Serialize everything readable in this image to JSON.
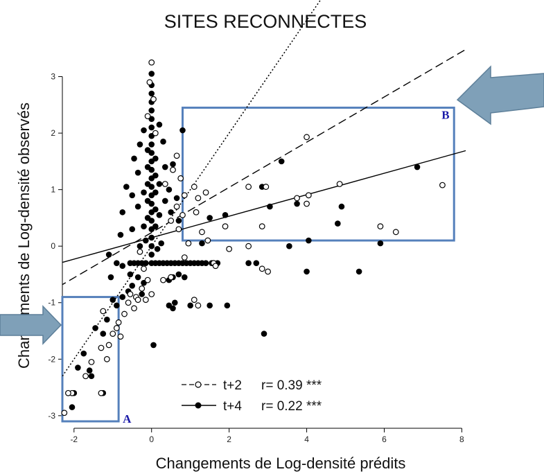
{
  "chart_data": {
    "type": "scatter",
    "title": "SITES RECONNECTES",
    "xlabel": "Changements de Log-densité prédits",
    "ylabel": "Changements de Log-densité observés",
    "xlim": [
      -2.3,
      8.1
    ],
    "ylim": [
      -3.1,
      3.35
    ],
    "x_ticks": [
      -2,
      0,
      2,
      4,
      6,
      8
    ],
    "y_ticks": [
      -3,
      -2,
      -1,
      0,
      1,
      2,
      3
    ],
    "grid": false,
    "legend_position": "bottom-center",
    "series": [
      {
        "label": "t+2",
        "stat": "r= 0.39 ***",
        "marker": "open-circle",
        "fit_line": {
          "style": "dashed",
          "slope": 0.4,
          "intercept": 0.24
        },
        "points": [
          [
            0.0,
            3.25
          ],
          [
            -0.05,
            2.9
          ],
          [
            0.05,
            2.6
          ],
          [
            -0.1,
            2.3
          ],
          [
            0.1,
            2.0
          ],
          [
            0.65,
            1.6
          ],
          [
            0.55,
            1.35
          ],
          [
            0.35,
            1.1
          ],
          [
            0.75,
            1.2
          ],
          [
            0.85,
            0.9
          ],
          [
            0.65,
            0.7
          ],
          [
            0.8,
            0.55
          ],
          [
            0.5,
            0.45
          ],
          [
            1.1,
            1.05
          ],
          [
            1.2,
            0.85
          ],
          [
            1.4,
            0.95
          ],
          [
            1.15,
            0.6
          ],
          [
            0.95,
            0.05
          ],
          [
            0.7,
            0.3
          ],
          [
            1.3,
            0.25
          ],
          [
            1.45,
            0.1
          ],
          [
            1.9,
            0.35
          ],
          [
            2.0,
            -0.05
          ],
          [
            2.5,
            1.05
          ],
          [
            2.95,
            1.05
          ],
          [
            2.85,
            0.35
          ],
          [
            2.5,
            0.0
          ],
          [
            2.85,
            -0.4
          ],
          [
            3.0,
            -0.45
          ],
          [
            3.75,
            0.85
          ],
          [
            4.0,
            1.93
          ],
          [
            4.05,
            0.9
          ],
          [
            4.0,
            0.75
          ],
          [
            4.85,
            1.1
          ],
          [
            5.9,
            0.35
          ],
          [
            6.3,
            0.25
          ],
          [
            7.5,
            1.08
          ],
          [
            1.6,
            -0.3
          ],
          [
            1.65,
            -0.35
          ],
          [
            0.85,
            -0.2
          ],
          [
            -0.3,
            -0.1
          ],
          [
            -0.2,
            -0.4
          ],
          [
            -0.1,
            -0.6
          ],
          [
            -0.25,
            -0.75
          ],
          [
            -0.4,
            -0.9
          ],
          [
            -0.55,
            -0.85
          ],
          [
            -0.6,
            -1.0
          ],
          [
            -0.35,
            -0.95
          ],
          [
            -0.15,
            -0.95
          ],
          [
            0.0,
            -0.85
          ],
          [
            -0.45,
            -1.1
          ],
          [
            -0.7,
            -1.2
          ],
          [
            -0.85,
            -1.35
          ],
          [
            -0.9,
            -1.45
          ],
          [
            -1.0,
            -1.55
          ],
          [
            -0.8,
            -1.6
          ],
          [
            -1.1,
            -1.75
          ],
          [
            -1.3,
            -1.8
          ],
          [
            -1.55,
            -2.05
          ],
          [
            -1.7,
            -2.3
          ],
          [
            -2.05,
            -2.6
          ],
          [
            -2.15,
            -2.6
          ],
          [
            -2.25,
            -2.95
          ],
          [
            -1.15,
            -2.0
          ],
          [
            -1.3,
            -2.6
          ],
          [
            -1.25,
            -1.15
          ],
          [
            1.1,
            -0.95
          ],
          [
            0.5,
            -0.55
          ],
          [
            0.3,
            -0.6
          ],
          [
            1.2,
            -1.05
          ]
        ]
      },
      {
        "label": "t+4",
        "stat": "r= 0.22 ***",
        "marker": "filled-circle",
        "fit_line": {
          "style": "solid",
          "slope": 0.19,
          "intercept": 0.15
        },
        "points": [
          [
            0.0,
            3.05
          ],
          [
            0.0,
            2.85
          ],
          [
            0.0,
            2.7
          ],
          [
            0.0,
            2.55
          ],
          [
            0.0,
            2.4
          ],
          [
            0.0,
            2.25
          ],
          [
            0.0,
            2.1
          ],
          [
            0.0,
            1.95
          ],
          [
            0.0,
            1.8
          ],
          [
            0.0,
            1.65
          ],
          [
            0.0,
            1.5
          ],
          [
            0.0,
            1.35
          ],
          [
            0.0,
            1.2
          ],
          [
            0.0,
            1.05
          ],
          [
            0.0,
            0.9
          ],
          [
            0.0,
            0.75
          ],
          [
            0.0,
            0.6
          ],
          [
            0.0,
            0.45
          ],
          [
            0.0,
            0.3
          ],
          [
            0.0,
            0.15
          ],
          [
            0.0,
            0.0
          ],
          [
            0.0,
            -0.15
          ],
          [
            0.0,
            -0.3
          ],
          [
            -0.1,
            1.7
          ],
          [
            -0.1,
            1.4
          ],
          [
            -0.1,
            1.1
          ],
          [
            -0.1,
            0.8
          ],
          [
            -0.1,
            0.5
          ],
          [
            0.1,
            1.55
          ],
          [
            0.1,
            1.25
          ],
          [
            0.1,
            0.95
          ],
          [
            0.1,
            0.65
          ],
          [
            0.1,
            0.35
          ],
          [
            -0.2,
            2.05
          ],
          [
            -0.2,
            0.95
          ],
          [
            -0.2,
            0.35
          ],
          [
            0.2,
            2.15
          ],
          [
            0.2,
            1.1
          ],
          [
            0.2,
            0.55
          ],
          [
            -0.3,
            1.8
          ],
          [
            -0.35,
            1.3
          ],
          [
            -0.35,
            0.7
          ],
          [
            0.3,
            1.85
          ],
          [
            0.35,
            1.4
          ],
          [
            0.35,
            0.8
          ],
          [
            -0.45,
            1.55
          ],
          [
            -0.5,
            0.9
          ],
          [
            -0.5,
            0.3
          ],
          [
            0.45,
            1.0
          ],
          [
            0.5,
            0.6
          ],
          [
            0.55,
            1.45
          ],
          [
            0.65,
            0.85
          ],
          [
            0.7,
            0.45
          ],
          [
            0.8,
            2.05
          ],
          [
            -0.65,
            1.05
          ],
          [
            -0.75,
            0.6
          ],
          [
            -0.8,
            0.2
          ],
          [
            -0.3,
            0.0
          ],
          [
            -0.15,
            0.1
          ],
          [
            0.25,
            0.05
          ],
          [
            0.15,
            -0.05
          ],
          [
            -0.55,
            -0.3
          ],
          [
            -0.45,
            -0.3
          ],
          [
            -0.35,
            -0.3
          ],
          [
            -0.25,
            -0.3
          ],
          [
            -0.15,
            -0.3
          ],
          [
            0.1,
            -0.3
          ],
          [
            0.2,
            -0.3
          ],
          [
            0.3,
            -0.3
          ],
          [
            0.4,
            -0.3
          ],
          [
            0.5,
            -0.3
          ],
          [
            0.6,
            -0.3
          ],
          [
            0.7,
            -0.3
          ],
          [
            0.8,
            -0.3
          ],
          [
            0.9,
            -0.3
          ],
          [
            1.0,
            -0.3
          ],
          [
            1.1,
            -0.3
          ],
          [
            1.2,
            -0.3
          ],
          [
            1.3,
            -0.3
          ],
          [
            1.4,
            -0.3
          ],
          [
            1.55,
            -0.3
          ],
          [
            1.7,
            -0.3
          ],
          [
            -0.55,
            -0.5
          ],
          [
            -0.35,
            -0.55
          ],
          [
            -0.2,
            -0.65
          ],
          [
            -0.5,
            -0.7
          ],
          [
            -0.25,
            -0.85
          ],
          [
            -0.6,
            -0.8
          ],
          [
            -0.75,
            -0.9
          ],
          [
            -1.0,
            -0.95
          ],
          [
            -0.9,
            -1.05
          ],
          [
            -1.15,
            -1.3
          ],
          [
            -1.45,
            -1.45
          ],
          [
            -1.25,
            -1.55
          ],
          [
            -1.75,
            -1.9
          ],
          [
            -1.9,
            -2.15
          ],
          [
            -1.6,
            -2.2
          ],
          [
            -1.55,
            -2.3
          ],
          [
            -2.0,
            -2.6
          ],
          [
            -1.25,
            -2.6
          ],
          [
            -2.05,
            -2.85
          ],
          [
            -0.75,
            -0.35
          ],
          [
            -1.1,
            -0.15
          ],
          [
            -1.05,
            -0.55
          ],
          [
            -0.9,
            -0.3
          ],
          [
            0.45,
            -0.6
          ],
          [
            0.55,
            -0.55
          ],
          [
            0.7,
            -0.5
          ],
          [
            0.45,
            -1.05
          ],
          [
            0.55,
            -1.1
          ],
          [
            0.6,
            -1.0
          ],
          [
            1.0,
            -1.05
          ],
          [
            1.5,
            -1.05
          ],
          [
            1.95,
            -1.05
          ],
          [
            0.05,
            -1.75
          ],
          [
            0.85,
            -0.55
          ],
          [
            1.3,
            0.05
          ],
          [
            1.5,
            0.5
          ],
          [
            1.9,
            0.55
          ],
          [
            3.05,
            0.7
          ],
          [
            2.85,
            1.05
          ],
          [
            3.35,
            1.5
          ],
          [
            3.55,
            0.0
          ],
          [
            3.75,
            0.75
          ],
          [
            4.05,
            0.1
          ],
          [
            4.0,
            -0.45
          ],
          [
            4.9,
            0.7
          ],
          [
            4.8,
            0.4
          ],
          [
            2.5,
            -0.3
          ],
          [
            2.7,
            -0.3
          ],
          [
            2.9,
            -1.55
          ],
          [
            5.35,
            -0.45
          ],
          [
            5.9,
            0.05
          ],
          [
            6.85,
            1.4
          ]
        ]
      }
    ],
    "reference_line": {
      "style": "dotted",
      "slope": 1.0,
      "intercept": 0.0
    },
    "highlight_boxes": [
      {
        "label": "A",
        "x0": -2.3,
        "x1": -0.85,
        "y0": -3.1,
        "y1": -0.9
      },
      {
        "label": "B",
        "x0": 0.8,
        "x1": 7.8,
        "y0": 0.1,
        "y1": 2.45
      }
    ],
    "colors": {
      "box": "#5580bb",
      "marker": "#000000",
      "arrow_fill": "#7fa0b8",
      "box_label": "#1a1aa8"
    }
  }
}
